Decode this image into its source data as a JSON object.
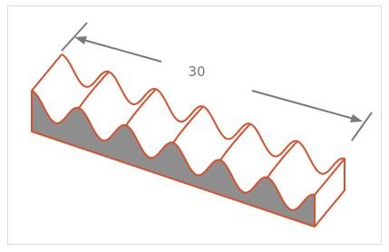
{
  "dimension_label": "30"
}
